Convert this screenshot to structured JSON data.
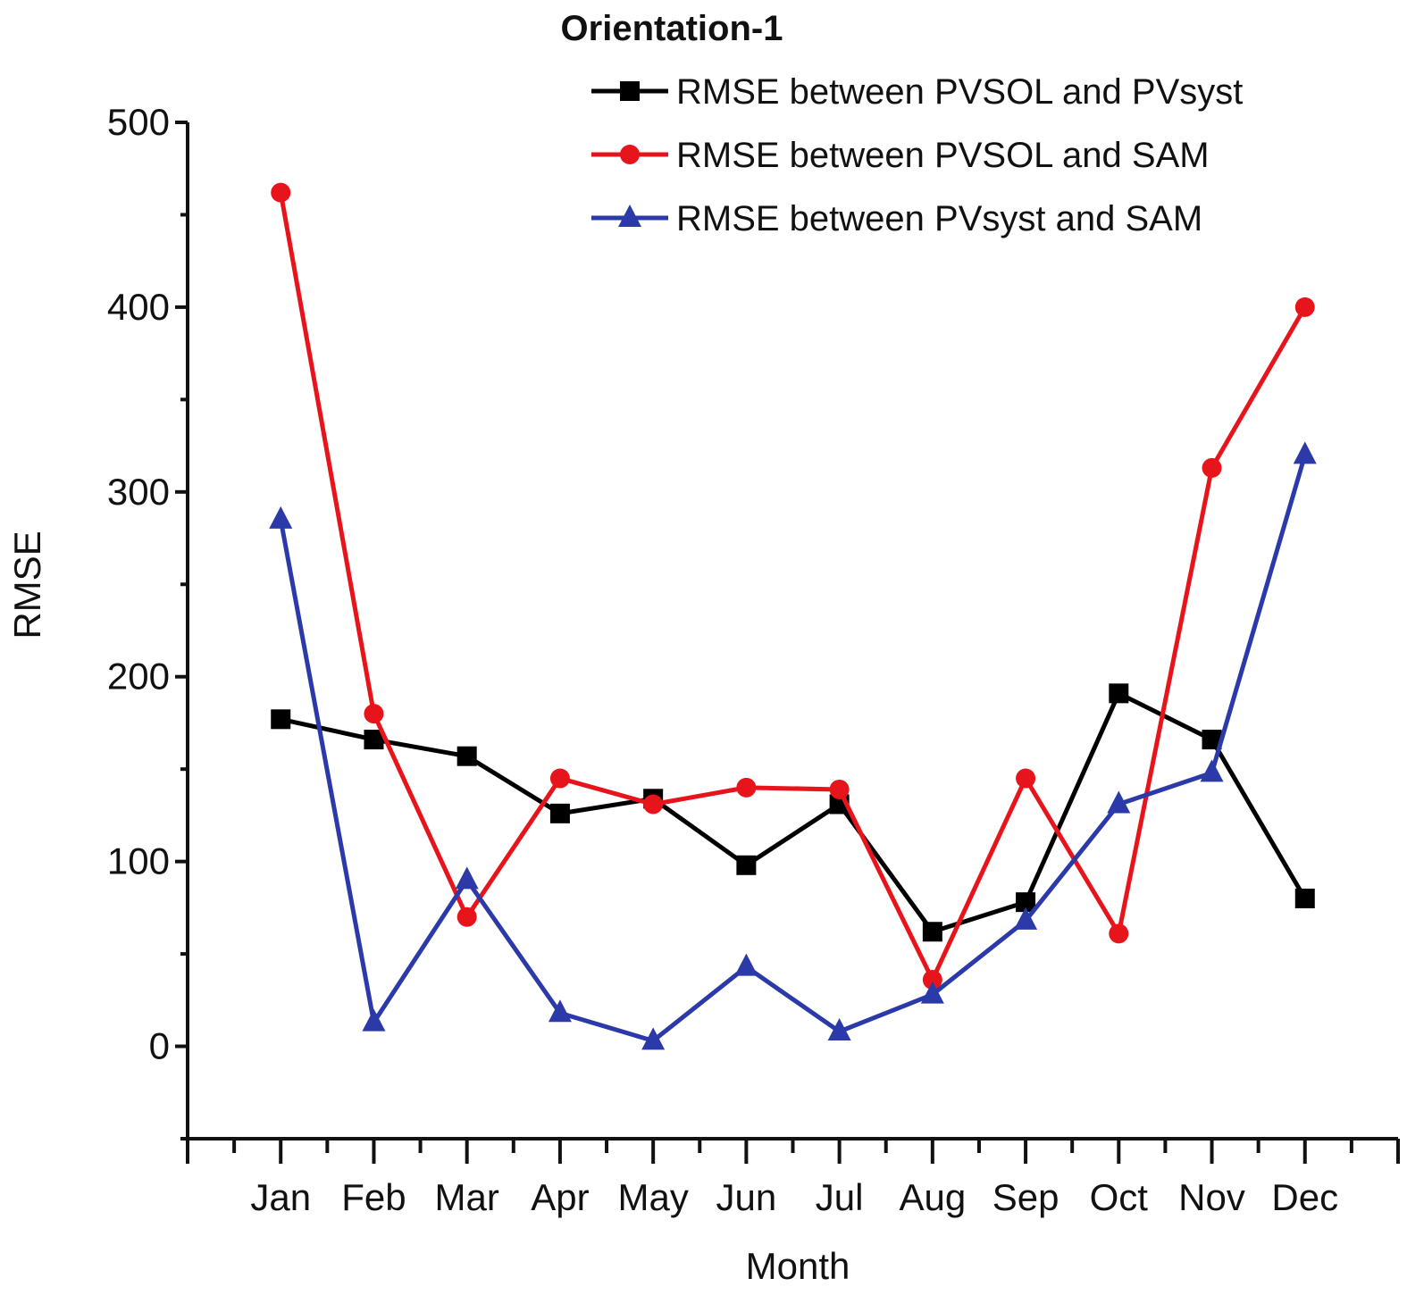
{
  "chart_data": {
    "type": "line",
    "title": "Orientation-1",
    "xlabel": "Month",
    "ylabel": "RMSE",
    "categories": [
      "Jan",
      "Feb",
      "Mar",
      "Apr",
      "May",
      "Jun",
      "Jul",
      "Aug",
      "Sep",
      "Oct",
      "Nov",
      "Dec"
    ],
    "ylim": [
      -50,
      500
    ],
    "xlim": [
      0,
      13
    ],
    "yticks": [
      0,
      100,
      200,
      300,
      400,
      500
    ],
    "grid": false,
    "legend_position": "top-right",
    "series": [
      {
        "name": "RMSE between PVSOL and PVsyst",
        "color": "#000000",
        "marker": "square",
        "values": [
          177,
          166,
          157,
          126,
          134,
          98,
          131,
          62,
          78,
          191,
          166,
          80
        ]
      },
      {
        "name": "RMSE between PVSOL and SAM",
        "color": "#e8141b",
        "marker": "circle",
        "values": [
          462,
          180,
          70,
          145,
          131,
          140,
          139,
          36,
          145,
          61,
          313,
          400
        ]
      },
      {
        "name": "RMSE between PVsyst and SAM",
        "color": "#2b3aa8",
        "marker": "triangle",
        "values": [
          285,
          13,
          90,
          18,
          3,
          43,
          8,
          28,
          68,
          131,
          148,
          320
        ]
      }
    ]
  }
}
